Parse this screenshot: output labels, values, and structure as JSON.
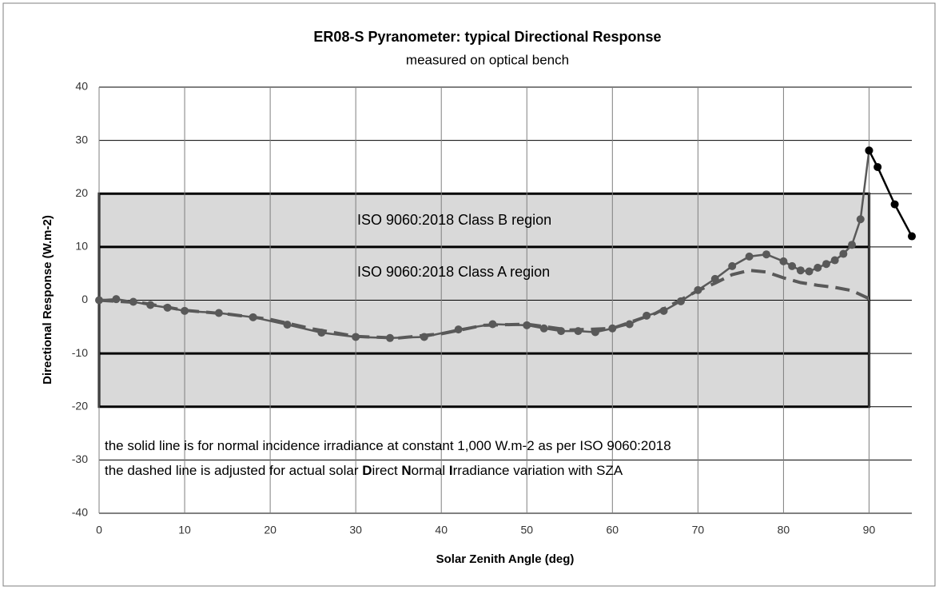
{
  "chart_data": {
    "type": "line",
    "title": "ER08-S Pyranometer: typical Directional Response",
    "subtitle": "measured on optical bench",
    "x_label": "Solar  Zenith Angle (deg)",
    "y_label": "Directional  Response  (W.m-2)",
    "xlim": [
      0,
      95
    ],
    "ylim": [
      -40,
      40
    ],
    "xticks": [
      0,
      10,
      20,
      30,
      40,
      50,
      60,
      70,
      80,
      90
    ],
    "yticks": [
      -40,
      -30,
      -20,
      -10,
      0,
      10,
      20,
      30,
      40
    ],
    "grid": true,
    "regions": [
      {
        "label": "ISO 9060:2018  Class B region",
        "x": [
          0,
          90
        ],
        "y": [
          -20,
          20
        ],
        "color": "#d9d9d9"
      },
      {
        "label": "ISO 9060:2018  Class A region",
        "x": [
          0,
          90
        ],
        "y": [
          -10,
          10
        ],
        "color": "#d9d9d9"
      }
    ],
    "notes": [
      {
        "pieces": [
          "the solid line is for normal incidence irradiance at constant 1,000 W.m-2 as per ISO 9060:2018"
        ],
        "bold_pieces": []
      },
      {
        "pieces": [
          "the dashed line is adjusted for actual solar ",
          "D",
          "irect ",
          "N",
          "ormal ",
          "I",
          "rradiance variation with SZA"
        ],
        "bold_pieces": [
          1,
          3,
          5
        ]
      }
    ],
    "series": [
      {
        "style": "solid",
        "color": "#595959",
        "markers": true,
        "x": [
          0,
          2,
          4,
          6,
          8,
          10,
          14,
          18,
          22,
          26,
          30,
          34,
          38,
          42,
          46,
          50,
          52,
          54,
          56,
          58,
          60,
          62,
          64,
          66,
          68,
          70,
          72,
          74,
          76,
          78,
          80,
          81,
          82,
          83,
          84,
          85,
          86,
          87,
          88,
          89,
          90
        ],
        "values": [
          0,
          0.2,
          -0.3,
          -0.9,
          -1.4,
          -2,
          -2.4,
          -3.2,
          -4.6,
          -6.1,
          -6.9,
          -7.1,
          -6.9,
          -5.5,
          -4.5,
          -4.7,
          -5.3,
          -5.8,
          -5.8,
          -6.0,
          -5.3,
          -4.5,
          -2.9,
          -2,
          -0.2,
          1.9,
          4,
          6.4,
          8.2,
          8.6,
          7.3,
          6.4,
          5.6,
          5.4,
          6.1,
          6.8,
          7.5,
          8.7,
          10.4,
          15.2,
          28.1
        ]
      },
      {
        "style": "solid",
        "color": "#000000",
        "markers": true,
        "x": [
          90,
          91,
          93,
          95
        ],
        "values": [
          28.1,
          25,
          18,
          12
        ]
      },
      {
        "style": "dashed",
        "color": "#595959",
        "markers": false,
        "x": [
          0,
          5,
          10,
          15,
          20,
          25,
          30,
          35,
          40,
          45,
          50,
          55,
          60,
          65,
          70,
          72,
          74,
          76,
          78,
          80,
          82,
          84,
          86,
          88,
          90
        ],
        "values": [
          0,
          -0.5,
          -1.9,
          -2.6,
          -3.6,
          -5.4,
          -6.8,
          -7.1,
          -6.3,
          -4.7,
          -4.5,
          -5.6,
          -5.3,
          -2.5,
          1.8,
          3.2,
          4.8,
          5.6,
          5.3,
          4.2,
          3.3,
          2.8,
          2.4,
          1.8,
          0.3
        ]
      }
    ]
  }
}
